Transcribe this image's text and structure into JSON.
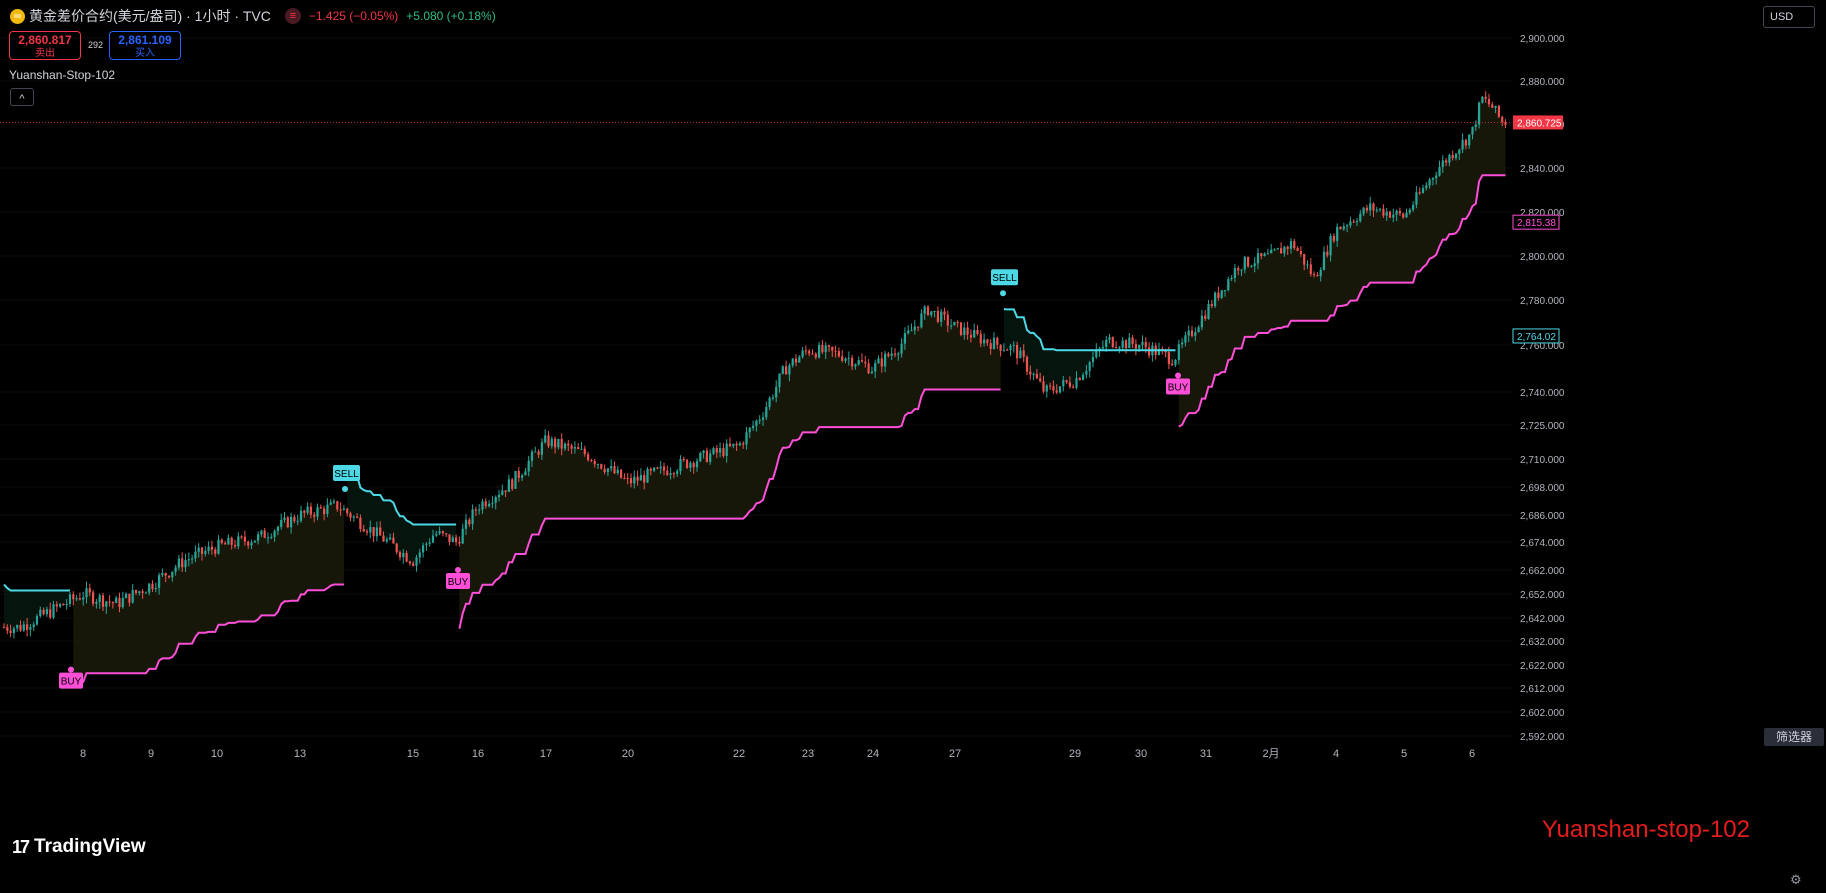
{
  "header": {
    "symbol_title": "黄金差价合约(美元/盎司) · 1小时 · TVC",
    "badge": "≡",
    "change": "−1.425 (−0.05%)",
    "change2": "+5.080 (+0.18%)"
  },
  "trade": {
    "sell_price": "2,860.817",
    "sell_label": "卖出",
    "spread": "292",
    "buy_price": "2,861.109",
    "buy_label": "买入"
  },
  "indicator": {
    "name": "Yuanshan-Stop-102",
    "collapse": "^"
  },
  "currency": "USD",
  "filter_label": "筛选器",
  "logo": "TradingView",
  "logo_mark": "17",
  "watermark": "Yuanshan-stop-102",
  "settings_icon": "gear-icon",
  "colors": {
    "up": "#26a69a",
    "down": "#ef5350",
    "stop_up": "#ff4fd8",
    "stop_down": "#4dd8e6",
    "bg": "#000000"
  },
  "chart_data": {
    "type": "candlestick",
    "title": "",
    "y_ticks": [
      "2,900.000",
      "2,880.000",
      "2,860.000",
      "2,840.000",
      "2,820.000",
      "2,800.000",
      "2,780.000",
      "2,760.000",
      "2,740.000",
      "2,725.000",
      "2,710.000",
      "2,698.000",
      "2,686.000",
      "2,674.000",
      "2,662.000",
      "2,652.000",
      "2,642.000",
      "2,632.000",
      "2,622.000",
      "2,612.000",
      "2,602.000",
      "2,592.000"
    ],
    "x_ticks": [
      "8",
      "9",
      "10",
      "13",
      "15",
      "16",
      "17",
      "20",
      "22",
      "23",
      "24",
      "27",
      "29",
      "30",
      "31",
      "2月",
      "4",
      "5",
      "6"
    ],
    "price_labels": {
      "last": "2,860.725",
      "stop_up": "2,815.38",
      "stop_down": "2,764.02"
    },
    "signals": [
      {
        "label": "BUY",
        "type": "buy",
        "time": "8",
        "price": 2620
      },
      {
        "label": "SELL",
        "type": "sell",
        "time": "13",
        "price": 2698
      },
      {
        "label": "BUY",
        "type": "buy",
        "time": "15",
        "price": 2662
      },
      {
        "label": "SELL",
        "type": "sell",
        "time": "27",
        "price": 2784
      },
      {
        "label": "BUY",
        "type": "buy",
        "time": "30",
        "price": 2747
      }
    ],
    "close_path": [
      [
        "7",
        2638
      ],
      [
        "7",
        2645
      ],
      [
        "8",
        2652
      ],
      [
        "8",
        2648
      ],
      [
        "9",
        2656
      ],
      [
        "9",
        2666
      ],
      [
        "10",
        2672
      ],
      [
        "10",
        2676
      ],
      [
        "13",
        2686
      ],
      [
        "13",
        2690
      ],
      [
        "13",
        2678
      ],
      [
        "15",
        2666
      ],
      [
        "15",
        2678
      ],
      [
        "15",
        2674
      ],
      [
        "16",
        2690
      ],
      [
        "16",
        2700
      ],
      [
        "17",
        2718
      ],
      [
        "17",
        2712
      ],
      [
        "20",
        2700
      ],
      [
        "20",
        2708
      ],
      [
        "22",
        2716
      ],
      [
        "22",
        2730
      ],
      [
        "22",
        2750
      ],
      [
        "23",
        2758
      ],
      [
        "23",
        2756
      ],
      [
        "24",
        2750
      ],
      [
        "24",
        2760
      ],
      [
        "24",
        2776
      ],
      [
        "27",
        2768
      ],
      [
        "27",
        2762
      ],
      [
        "27",
        2758
      ],
      [
        "27",
        2740
      ],
      [
        "29",
        2745
      ],
      [
        "29",
        2762
      ],
      [
        "30",
        2760
      ],
      [
        "30",
        2754
      ],
      [
        "31",
        2775
      ],
      [
        "31",
        2796
      ],
      [
        "2月",
        2800
      ],
      [
        "2月",
        2806
      ],
      [
        "2月",
        2790
      ],
      [
        "4",
        2812
      ],
      [
        "4",
        2822
      ],
      [
        "5",
        2818
      ],
      [
        "5",
        2840
      ],
      [
        "6",
        2856
      ],
      [
        "6",
        2872
      ],
      [
        "6",
        2868
      ],
      [
        "6",
        2861
      ]
    ]
  }
}
